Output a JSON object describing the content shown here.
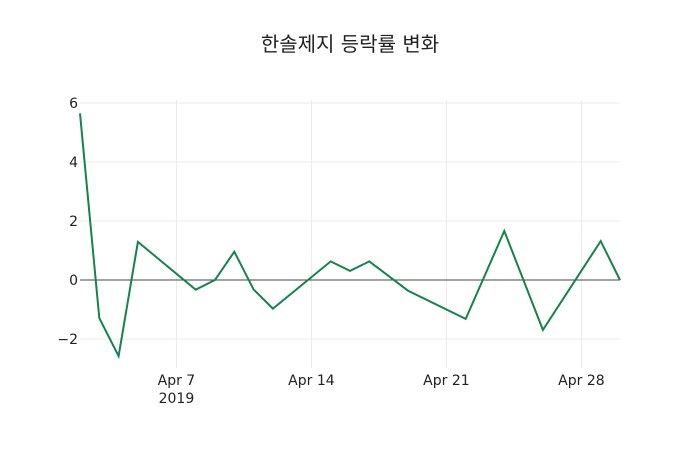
{
  "chart_data": {
    "type": "line",
    "title": "한솔제지 등락률 변화",
    "xlabel": "",
    "ylabel": "",
    "x": [
      "2019-04-02",
      "2019-04-03",
      "2019-04-04",
      "2019-04-05",
      "2019-04-08",
      "2019-04-09",
      "2019-04-10",
      "2019-04-11",
      "2019-04-12",
      "2019-04-15",
      "2019-04-16",
      "2019-04-17",
      "2019-04-19",
      "2019-04-22",
      "2019-04-24",
      "2019-04-26",
      "2019-04-29",
      "2019-04-30"
    ],
    "series": [
      {
        "name": "등락률",
        "color": "#14844b",
        "values": [
          5.65,
          -1.29,
          -2.58,
          1.29,
          -0.33,
          0.0,
          0.96,
          -0.32,
          -0.97,
          0.63,
          0.31,
          0.63,
          -0.36,
          -1.32,
          1.66,
          -1.69,
          1.32,
          0.0
        ]
      }
    ],
    "x_ticks": [
      {
        "label": "Apr 7",
        "sub": "2019",
        "date": "2019-04-07"
      },
      {
        "label": "Apr 14",
        "date": "2019-04-14"
      },
      {
        "label": "Apr 21",
        "date": "2019-04-21"
      },
      {
        "label": "Apr 28",
        "date": "2019-04-28"
      }
    ],
    "y_ticks": [
      6,
      4,
      2,
      0,
      -2
    ],
    "y_tick_labels": [
      "6",
      "4",
      "2",
      "0",
      "−2"
    ],
    "ylim": [
      -3.1,
      6.0
    ],
    "xlim": [
      "2019-04-02",
      "2019-04-30"
    ],
    "grid": true,
    "legend": false
  }
}
